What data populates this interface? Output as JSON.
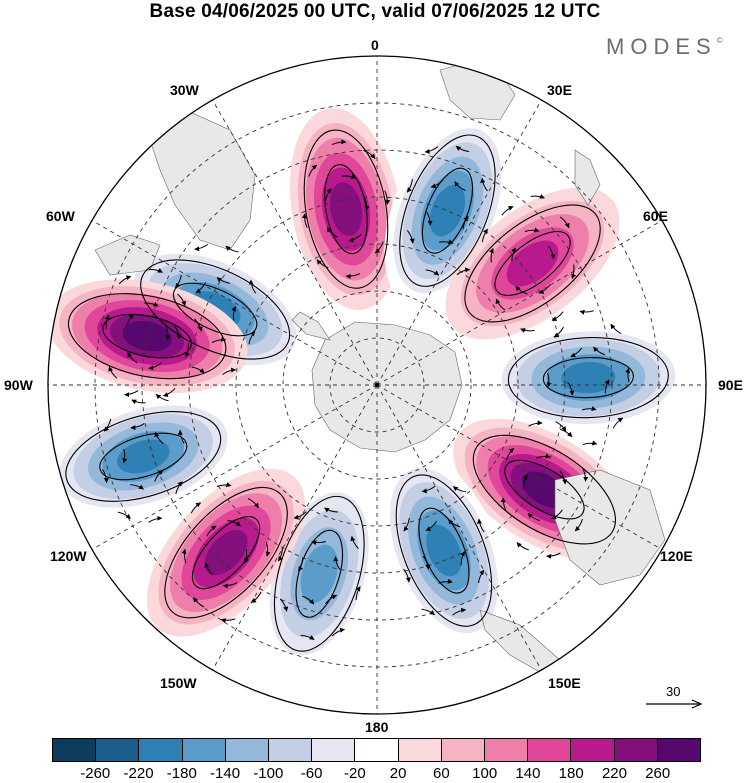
{
  "title": "Base 04/06/2025 00 UTC, valid 07/06/2025 12 UTC",
  "brand": {
    "name": "MODES",
    "mark": "©"
  },
  "longitude_labels": {
    "top": "0",
    "n30e": "30E",
    "n60e": "60E",
    "n90e": "90E",
    "n120e": "120E",
    "n150e": "150E",
    "bottom": "180",
    "n150w": "150W",
    "n120w": "120W",
    "n90w": "90W",
    "n60w": "60W",
    "n30w": "30W"
  },
  "vector_scale": {
    "label": "30"
  },
  "colorbar": {
    "colors": [
      "#0e3c5c",
      "#1a5c8c",
      "#2f80b5",
      "#5c9ccb",
      "#93b8da",
      "#c4cfe6",
      "#e6e6f2",
      "#ffffff",
      "#fad8dc",
      "#f6b3c3",
      "#ee7fab",
      "#e0479a",
      "#b8198c",
      "#83107c",
      "#56086e"
    ],
    "ticks": [
      "-260",
      "-220",
      "-180",
      "-140",
      "-100",
      "-60",
      "-20",
      "20",
      "60",
      "100",
      "140",
      "180",
      "220",
      "260"
    ]
  },
  "anomalies": [
    {
      "lon": -65,
      "lat": -52,
      "value": -200
    },
    {
      "lon": -10,
      "lat": -52,
      "value": 200
    },
    {
      "lon": 22,
      "lat": -50,
      "value": -200
    },
    {
      "lon": 52,
      "lat": -48,
      "value": 190
    },
    {
      "lon": 88,
      "lat": -45,
      "value": -230
    },
    {
      "lon": 122,
      "lat": -48,
      "value": 260
    },
    {
      "lon": 158,
      "lat": -52,
      "value": -210
    },
    {
      "lon": -163,
      "lat": -48,
      "value": -180
    },
    {
      "lon": -138,
      "lat": -42,
      "value": 230
    },
    {
      "lon": -107,
      "lat": -38,
      "value": -220
    },
    {
      "lon": -78,
      "lat": -40,
      "value": 270
    }
  ]
}
